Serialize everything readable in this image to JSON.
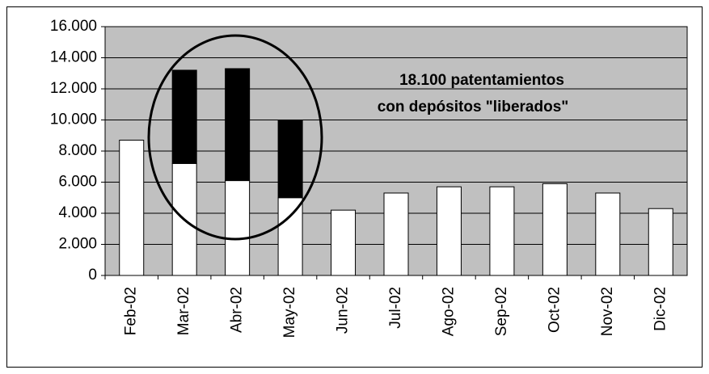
{
  "chart_data": {
    "type": "stacked_bar",
    "categories": [
      "Feb-02",
      "Mar-02",
      "Abr-02",
      "May-02",
      "Jun-02",
      "Jul-02",
      "Ago-02",
      "Sep-02",
      "Oct-02",
      "Nov-02",
      "Dic-02"
    ],
    "series": [
      {
        "color": "#ffffff",
        "values": [
          8700,
          7200,
          6100,
          5000,
          4200,
          5300,
          5700,
          5700,
          5900,
          5300,
          4300
        ]
      },
      {
        "color": "#000000",
        "values": [
          null,
          6000,
          7200,
          5000,
          null,
          null,
          null,
          null,
          null,
          null,
          null
        ]
      }
    ],
    "ylim": [
      0,
      16000
    ],
    "yticks": [
      0,
      {
        "value": 2000,
        "label": "2.000"
      },
      {
        "value": 4000,
        "label": "4.000"
      },
      {
        "value": 6000,
        "label": "6.000"
      },
      {
        "value": 8000,
        "label": "8.000"
      },
      {
        "value": 10000,
        "label": "10.000"
      },
      {
        "value": 12000,
        "label": "12.000"
      },
      {
        "value": 14000,
        "label": "14.000"
      },
      {
        "value": 16000,
        "label": "16.000"
      }
    ],
    "grid": true,
    "annotations": [
      "18.100 patentamientos",
      "con depósitos \"liberados\""
    ]
  }
}
